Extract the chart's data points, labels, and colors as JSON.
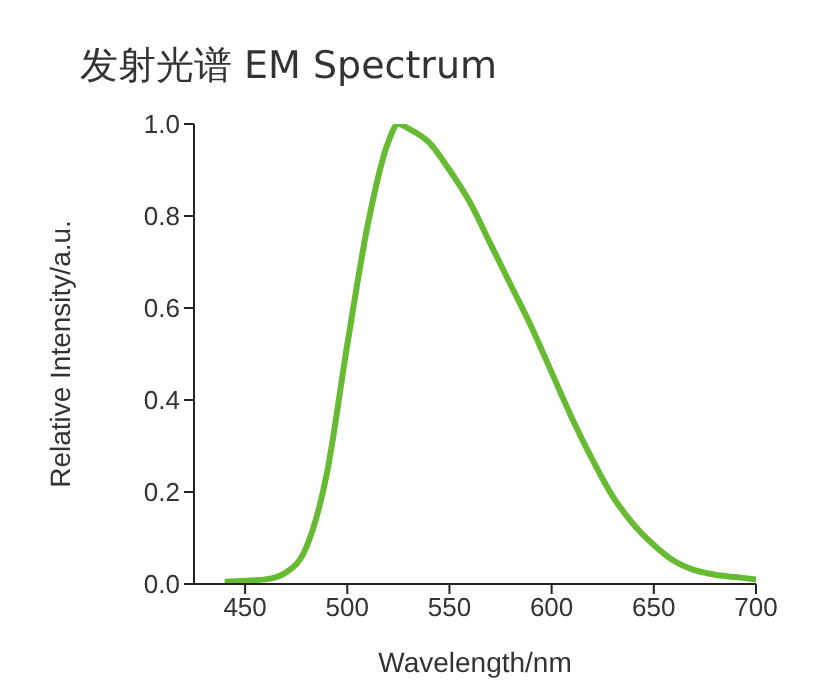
{
  "chart_data": {
    "type": "line",
    "title": "发射光谱 EM Spectrum",
    "xlabel": "Wavelength/nm",
    "ylabel": "Relative  Intensity/a.u.",
    "x": [
      440,
      450,
      460,
      470,
      480,
      490,
      500,
      510,
      520,
      525,
      530,
      540,
      550,
      560,
      570,
      580,
      590,
      600,
      610,
      620,
      630,
      640,
      650,
      660,
      670,
      680,
      690,
      700
    ],
    "series": [
      {
        "color": "#66bb33",
        "values": [
          0.005,
          0.007,
          0.01,
          0.025,
          0.08,
          0.24,
          0.52,
          0.78,
          0.96,
          1.0,
          0.99,
          0.96,
          0.9,
          0.83,
          0.74,
          0.65,
          0.56,
          0.46,
          0.36,
          0.27,
          0.19,
          0.13,
          0.085,
          0.05,
          0.03,
          0.02,
          0.015,
          0.01
        ]
      }
    ],
    "xlim": [
      425,
      700
    ],
    "xticks": [
      450,
      500,
      550,
      600,
      650,
      700
    ],
    "ylim": [
      0,
      1
    ],
    "yticks": [
      {
        "value": 0,
        "label": "0.0"
      },
      {
        "value": 0.2,
        "label": "0.2"
      },
      {
        "value": 0.4,
        "label": "0.4"
      },
      {
        "value": 0.6,
        "label": "0.6"
      },
      {
        "value": 0.8,
        "label": "0.8"
      },
      {
        "value": 1,
        "label": "1.0"
      }
    ],
    "grid": false,
    "legend": false,
    "marker": "none",
    "line_style": "solid"
  }
}
